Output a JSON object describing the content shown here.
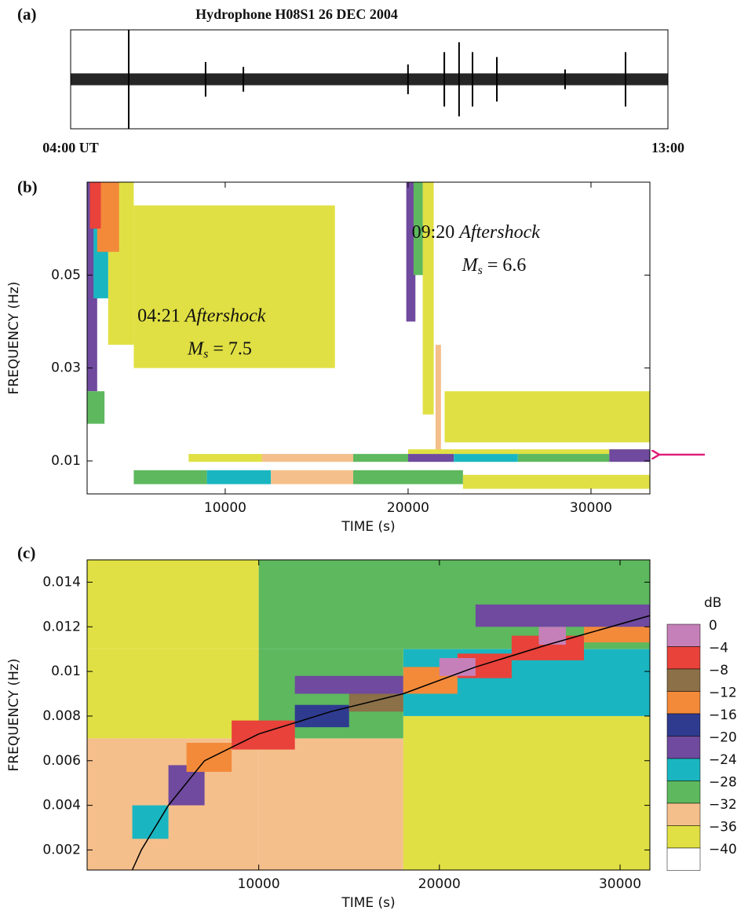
{
  "chart_data": [
    {
      "type": "waveform",
      "label": "(a)",
      "title": "Hydrophone  H08S1  26 DEC 2004",
      "xlim": [
        0,
        32400
      ],
      "xticks": [
        {
          "value": 0,
          "label": "04:00 UT"
        },
        {
          "value": 32400,
          "label": "13:00"
        }
      ],
      "ylim": [
        -1,
        1
      ],
      "background_amplitude": 0.12,
      "color": "#000000",
      "spikes": {
        "x": [
          3150,
          7320,
          9370,
          18300,
          20270,
          21070,
          21800,
          23120,
          26820,
          30100
        ],
        "amplitude": [
          1,
          0.35,
          0.25,
          0.3,
          0.55,
          0.75,
          0.55,
          0.45,
          0.2,
          0.55
        ]
      }
    },
    {
      "type": "heatmap",
      "label": "(b)",
      "xlabel": "TIME (s)",
      "ylabel": "FREQUENCY (Hz)",
      "xlim": [
        2450,
        33220
      ],
      "ylim": [
        0.0029,
        0.07
      ],
      "xticks": [
        10000,
        20000,
        30000
      ],
      "yticks": [
        0.01,
        0.03,
        0.05
      ],
      "annotations": [
        {
          "time": "09:20",
          "event": "Aftershock",
          "symbol": "M",
          "subscript": "s",
          "magnitude": "= 6.6",
          "x": 20200,
          "y": 0.059
        },
        {
          "time": "04:21",
          "event": "Aftershock",
          "symbol": "M",
          "subscript": "s",
          "magnitude": "= 7.5",
          "x": 5200,
          "y": 0.041
        }
      ],
      "cells": [
        [
          5000,
          16000,
          0.03,
          0.065,
          -36
        ],
        [
          22000,
          33220,
          0.014,
          0.025,
          -36
        ],
        [
          3600,
          5000,
          0.035,
          0.07,
          -36
        ],
        [
          2450,
          3000,
          0.025,
          0.07,
          -20
        ],
        [
          2800,
          3600,
          0.045,
          0.07,
          -24
        ],
        [
          3000,
          4200,
          0.055,
          0.07,
          -12
        ],
        [
          2600,
          3200,
          0.06,
          0.07,
          -4
        ],
        [
          2450,
          3400,
          0.018,
          0.025,
          -28
        ],
        [
          20800,
          21400,
          0.02,
          0.07,
          -36
        ],
        [
          19900,
          20400,
          0.04,
          0.07,
          -20
        ],
        [
          20300,
          20800,
          0.05,
          0.07,
          -28
        ],
        [
          21500,
          21800,
          0.012,
          0.035,
          -32
        ],
        [
          20000,
          33220,
          0.0115,
          0.0125,
          -36
        ],
        [
          8000,
          12000,
          0.0098,
          0.0115,
          -36
        ],
        [
          12000,
          17000,
          0.0098,
          0.0115,
          -32
        ],
        [
          17000,
          20000,
          0.0098,
          0.0115,
          -28
        ],
        [
          20000,
          22500,
          0.0098,
          0.0115,
          -20
        ],
        [
          22500,
          26000,
          0.0098,
          0.0115,
          -24
        ],
        [
          26000,
          31000,
          0.0098,
          0.0115,
          -28
        ],
        [
          31000,
          33220,
          0.0098,
          0.0125,
          -20
        ],
        [
          5000,
          9000,
          0.005,
          0.008,
          -28
        ],
        [
          9000,
          12500,
          0.005,
          0.008,
          -24
        ],
        [
          12500,
          17000,
          0.005,
          0.008,
          -32
        ],
        [
          17000,
          23000,
          0.005,
          0.008,
          -28
        ],
        [
          23000,
          33220,
          0.004,
          0.007,
          -36
        ]
      ]
    },
    {
      "type": "heatmap",
      "label": "(c)",
      "xlabel": "TIME (s)",
      "ylabel": "FREQUENCY (Hz)",
      "xlim": [
        500,
        31650
      ],
      "ylim": [
        0.0011,
        0.015
      ],
      "xticks": [
        10000,
        20000,
        30000
      ],
      "yticks": [
        0.002,
        0.004,
        0.006,
        0.008,
        0.01,
        0.012,
        0.014
      ],
      "cells": [
        [
          500,
          10000,
          0.011,
          0.015,
          -36
        ],
        [
          10000,
          31650,
          0.011,
          0.015,
          -28
        ],
        [
          500,
          10000,
          0.007,
          0.011,
          -36
        ],
        [
          10000,
          18000,
          0.0011,
          0.007,
          -32
        ],
        [
          500,
          10000,
          0.0011,
          0.007,
          -32
        ],
        [
          18000,
          31650,
          0.0011,
          0.008,
          -36
        ],
        [
          18000,
          31650,
          0.008,
          0.011,
          -24
        ],
        [
          10000,
          18000,
          0.007,
          0.011,
          -28
        ],
        [
          3000,
          5000,
          0.0025,
          0.004,
          -24
        ],
        [
          5000,
          7000,
          0.004,
          0.0058,
          -20
        ],
        [
          6000,
          8500,
          0.0055,
          0.0068,
          -12
        ],
        [
          8500,
          12000,
          0.0065,
          0.0078,
          -4
        ],
        [
          12000,
          15000,
          0.0075,
          0.0085,
          -16
        ],
        [
          15000,
          18000,
          0.0082,
          0.0092,
          -8
        ],
        [
          12000,
          18000,
          0.009,
          0.0098,
          -20
        ],
        [
          18000,
          21000,
          0.009,
          0.0102,
          -12
        ],
        [
          21000,
          24000,
          0.0097,
          0.0108,
          -4
        ],
        [
          20000,
          22000,
          0.0098,
          0.0106,
          0
        ],
        [
          24000,
          28000,
          0.0105,
          0.0116,
          -4
        ],
        [
          25500,
          27000,
          0.0112,
          0.012,
          0
        ],
        [
          28000,
          31650,
          0.0113,
          0.0125,
          -12
        ],
        [
          22000,
          31650,
          0.012,
          0.013,
          -20
        ]
      ],
      "curve": {
        "color": "#000000",
        "x": [
          3000,
          3500,
          5000,
          7000,
          10000,
          14000,
          18000,
          22000,
          26000,
          31650
        ],
        "y": [
          0.0011,
          0.002,
          0.004,
          0.006,
          0.0072,
          0.0082,
          0.009,
          0.0102,
          0.0112,
          0.0125
        ]
      },
      "colorbar": {
        "title": "dB",
        "levels": [
          {
            "value": 0,
            "label": "0"
          },
          {
            "value": -4,
            "label": "−4"
          },
          {
            "value": -8,
            "label": "−8"
          },
          {
            "value": -12,
            "label": "−12"
          },
          {
            "value": -16,
            "label": "−16"
          },
          {
            "value": -20,
            "label": "−20"
          },
          {
            "value": -24,
            "label": "−24"
          },
          {
            "value": -28,
            "label": "−28"
          },
          {
            "value": -32,
            "label": "−32"
          },
          {
            "value": -36,
            "label": "−36"
          },
          {
            "value": -40,
            "label": "−40"
          }
        ],
        "colors": [
          "#c680b9",
          "#e8423a",
          "#8b7048",
          "#f38a3a",
          "#2f3b8f",
          "#6f4a9e",
          "#19b6c1",
          "#5db85e",
          "#f5bf8b",
          "#e0e044",
          "#ffffff"
        ]
      }
    }
  ]
}
